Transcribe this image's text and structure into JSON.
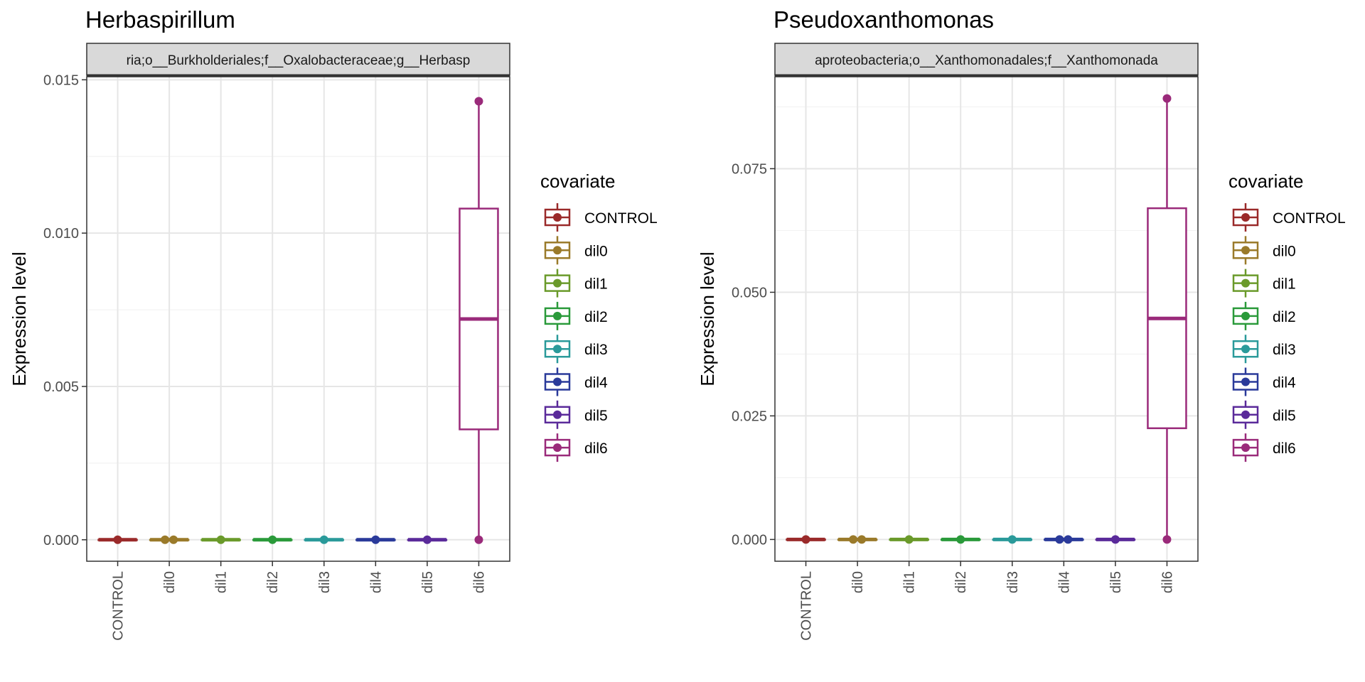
{
  "chart_data": [
    {
      "type": "box",
      "title": "Herbaspirillum",
      "facet_label": "ria;o__Burkholderiales;f__Oxalobacteraceae;g__Herbasp",
      "xlabel": "",
      "ylabel": "Expression level",
      "ylim": [
        -0.0007,
        0.0151
      ],
      "yticks": [
        0.0,
        0.005,
        0.01,
        0.015
      ],
      "ytick_labels": [
        "0.000",
        "0.005",
        "0.010",
        "0.015"
      ],
      "categories": [
        "CONTROL",
        "dil0",
        "dil1",
        "dil2",
        "dil3",
        "dil4",
        "dil5",
        "dil6"
      ],
      "boxes": [
        {
          "q1": 0,
          "median": 0,
          "q3": 0,
          "whisker_low": 0,
          "whisker_high": 0,
          "points": [
            0
          ]
        },
        {
          "q1": 0,
          "median": 0,
          "q3": 0,
          "whisker_low": 0,
          "whisker_high": 0,
          "points": [
            0,
            0
          ]
        },
        {
          "q1": 0,
          "median": 0,
          "q3": 0,
          "whisker_low": 0,
          "whisker_high": 0,
          "points": [
            0
          ]
        },
        {
          "q1": 0,
          "median": 0,
          "q3": 0,
          "whisker_low": 0,
          "whisker_high": 0,
          "points": [
            0
          ]
        },
        {
          "q1": 0,
          "median": 0,
          "q3": 0,
          "whisker_low": 0,
          "whisker_high": 0,
          "points": [
            0
          ]
        },
        {
          "q1": 0,
          "median": 0,
          "q3": 0,
          "whisker_low": 0,
          "whisker_high": 0,
          "points": [
            0
          ]
        },
        {
          "q1": 0,
          "median": 0,
          "q3": 0,
          "whisker_low": 0,
          "whisker_high": 0,
          "points": [
            0
          ]
        },
        {
          "q1": 0.0036,
          "median": 0.0072,
          "q3": 0.0108,
          "whisker_low": 0,
          "whisker_high": 0.0143,
          "points": [
            0,
            0.0143
          ]
        }
      ],
      "grid": true
    },
    {
      "type": "box",
      "title": "Pseudoxanthomonas",
      "facet_label": "aproteobacteria;o__Xanthomonadales;f__Xanthomonada",
      "xlabel": "",
      "ylabel": "Expression level",
      "ylim": [
        -0.0044,
        0.0936
      ],
      "yticks": [
        0.0,
        0.025,
        0.05,
        0.075
      ],
      "ytick_labels": [
        "0.000",
        "0.025",
        "0.050",
        "0.075"
      ],
      "categories": [
        "CONTROL",
        "dil0",
        "dil1",
        "dil2",
        "dil3",
        "dil4",
        "dil5",
        "dil6"
      ],
      "boxes": [
        {
          "q1": 0,
          "median": 0,
          "q3": 0,
          "whisker_low": 0,
          "whisker_high": 0,
          "points": [
            0
          ]
        },
        {
          "q1": 0,
          "median": 0,
          "q3": 0,
          "whisker_low": 0,
          "whisker_high": 0,
          "points": [
            0,
            0
          ]
        },
        {
          "q1": 0,
          "median": 0,
          "q3": 0,
          "whisker_low": 0,
          "whisker_high": 0,
          "points": [
            0
          ]
        },
        {
          "q1": 0,
          "median": 0,
          "q3": 0,
          "whisker_low": 0,
          "whisker_high": 0,
          "points": [
            0
          ]
        },
        {
          "q1": 0,
          "median": 0,
          "q3": 0,
          "whisker_low": 0,
          "whisker_high": 0,
          "points": [
            0
          ]
        },
        {
          "q1": 0,
          "median": 0,
          "q3": 0,
          "whisker_low": 0,
          "whisker_high": 0,
          "points": [
            0,
            0
          ]
        },
        {
          "q1": 0,
          "median": 0,
          "q3": 0,
          "whisker_low": 0,
          "whisker_high": 0,
          "points": [
            0
          ]
        },
        {
          "q1": 0.0225,
          "median": 0.0447,
          "q3": 0.067,
          "whisker_low": 0,
          "whisker_high": 0.0889,
          "points": [
            0,
            0.0892
          ]
        }
      ],
      "grid": true
    }
  ],
  "legend": {
    "title": "covariate",
    "position": "right",
    "entries": [
      {
        "label": "CONTROL",
        "color": "#9A2A2A"
      },
      {
        "label": "dil0",
        "color": "#9A7A2A"
      },
      {
        "label": "dil1",
        "color": "#6A9A2A"
      },
      {
        "label": "dil2",
        "color": "#2A9A3A"
      },
      {
        "label": "dil3",
        "color": "#2A9A9A"
      },
      {
        "label": "dil4",
        "color": "#2A3A9A"
      },
      {
        "label": "dil5",
        "color": "#5A2A9A"
      },
      {
        "label": "dil6",
        "color": "#9A2A7A"
      }
    ]
  }
}
